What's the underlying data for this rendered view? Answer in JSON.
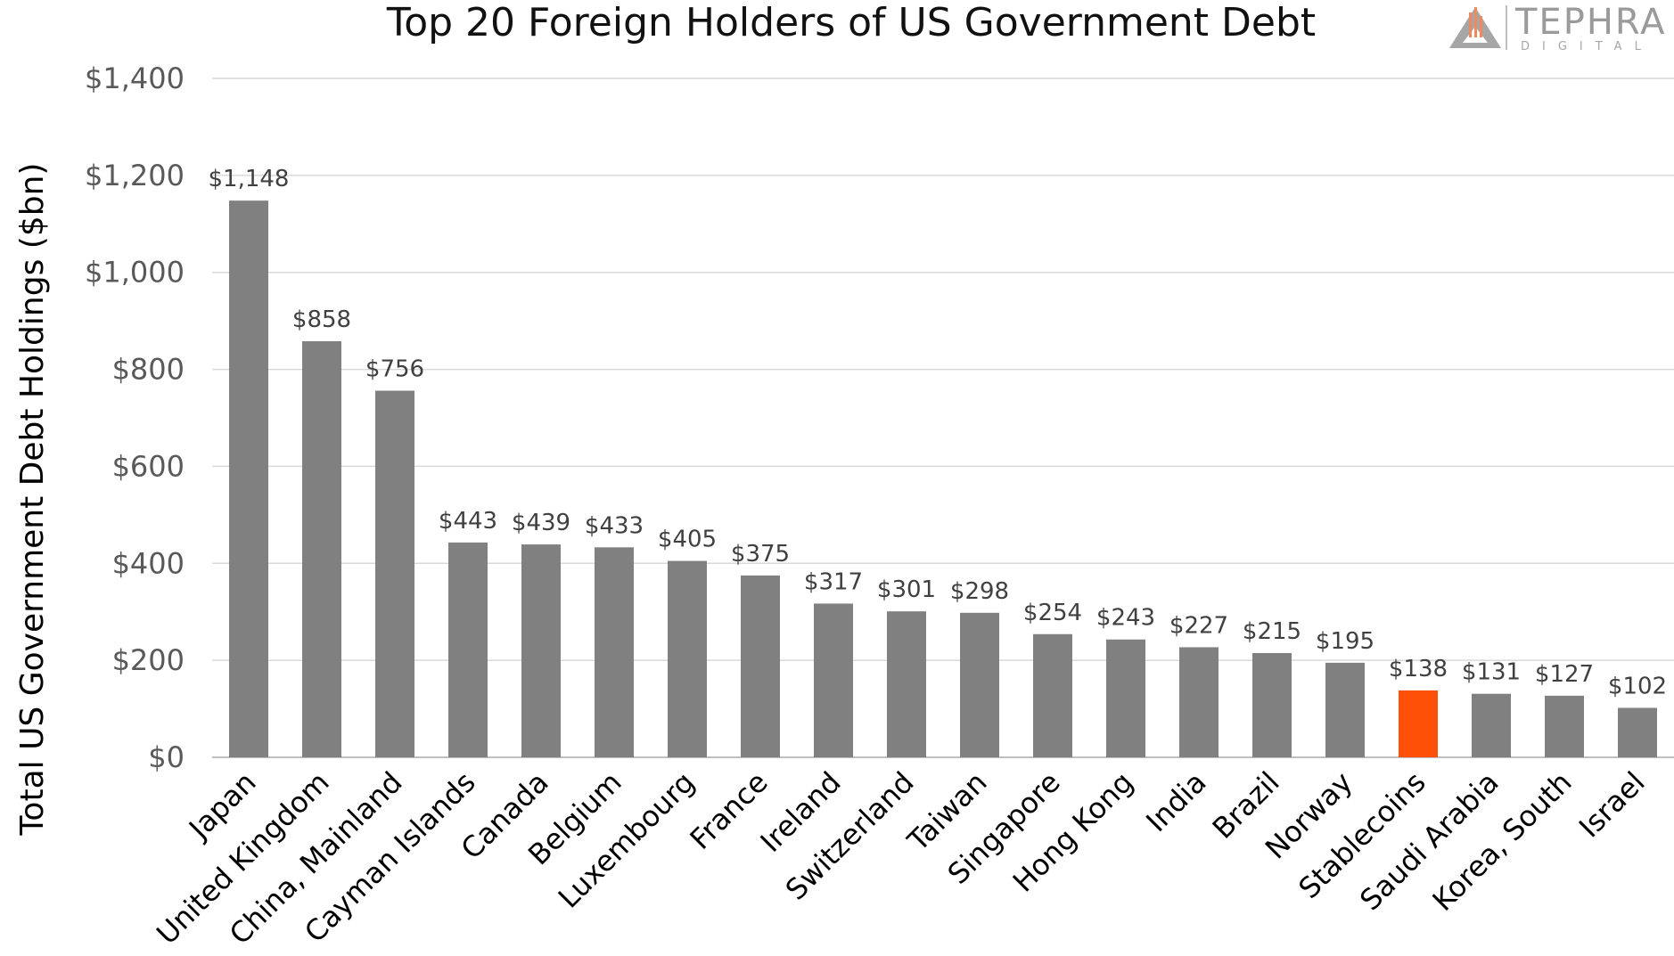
{
  "chart_data": {
    "type": "bar",
    "title": "Top 20 Foreign Holders of US Government Debt",
    "ylabel": "Total US Government Debt Holdings ($bn)",
    "xlabel": "",
    "ylim": [
      0,
      1400
    ],
    "yticks": [
      0,
      200,
      400,
      600,
      800,
      1000,
      1200,
      1400
    ],
    "ytick_labels": [
      "$0",
      "$200",
      "$400",
      "$600",
      "$800",
      "$1,000",
      "$1,200",
      "$1,400"
    ],
    "grid": true,
    "categories": [
      "Japan",
      "United Kingdom",
      "China, Mainland",
      "Cayman Islands",
      "Canada",
      "Belgium",
      "Luxembourg",
      "France",
      "Ireland",
      "Switzerland",
      "Taiwan",
      "Singapore",
      "Hong Kong",
      "India",
      "Brazil",
      "Norway",
      "Stablecoins",
      "Saudi Arabia",
      "Korea, South",
      "Israel"
    ],
    "values": [
      1148,
      858,
      756,
      443,
      439,
      433,
      405,
      375,
      317,
      301,
      298,
      254,
      243,
      227,
      215,
      195,
      138,
      131,
      127,
      102
    ],
    "data_labels": [
      "$1,148",
      "$858",
      "$756",
      "$443",
      "$439",
      "$433",
      "$405",
      "$375",
      "$317",
      "$301",
      "$298",
      "$254",
      "$243",
      "$227",
      "$215",
      "$195",
      "$138",
      "$131",
      "$127",
      "$102"
    ],
    "highlight_category": "Stablecoins",
    "colors": {
      "bar": "#808080",
      "highlight": "#ff5008"
    }
  },
  "logo": {
    "name": "TEPHRA",
    "sub": "DIGITAL"
  }
}
